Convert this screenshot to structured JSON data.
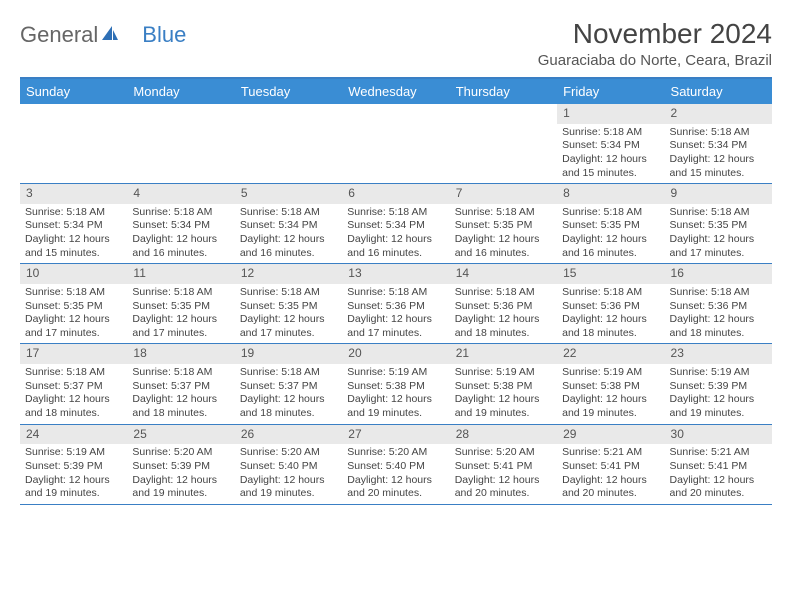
{
  "logo": {
    "part1": "General",
    "part2": "Blue"
  },
  "title": "November 2024",
  "location": "Guaraciaba do Norte, Ceara, Brazil",
  "colors": {
    "header_bg": "#3a8dd4",
    "border": "#3a7fc4",
    "daynum_bg": "#e9e9e9",
    "text": "#444444",
    "logo_gray": "#666666",
    "logo_blue": "#3a7fc4"
  },
  "dayNames": [
    "Sunday",
    "Monday",
    "Tuesday",
    "Wednesday",
    "Thursday",
    "Friday",
    "Saturday"
  ],
  "weeks": [
    [
      {
        "empty": true
      },
      {
        "empty": true
      },
      {
        "empty": true
      },
      {
        "empty": true
      },
      {
        "empty": true
      },
      {
        "num": "1",
        "sunrise": "5:18 AM",
        "sunset": "5:34 PM",
        "daylight": "12 hours and 15 minutes."
      },
      {
        "num": "2",
        "sunrise": "5:18 AM",
        "sunset": "5:34 PM",
        "daylight": "12 hours and 15 minutes."
      }
    ],
    [
      {
        "num": "3",
        "sunrise": "5:18 AM",
        "sunset": "5:34 PM",
        "daylight": "12 hours and 15 minutes."
      },
      {
        "num": "4",
        "sunrise": "5:18 AM",
        "sunset": "5:34 PM",
        "daylight": "12 hours and 16 minutes."
      },
      {
        "num": "5",
        "sunrise": "5:18 AM",
        "sunset": "5:34 PM",
        "daylight": "12 hours and 16 minutes."
      },
      {
        "num": "6",
        "sunrise": "5:18 AM",
        "sunset": "5:34 PM",
        "daylight": "12 hours and 16 minutes."
      },
      {
        "num": "7",
        "sunrise": "5:18 AM",
        "sunset": "5:35 PM",
        "daylight": "12 hours and 16 minutes."
      },
      {
        "num": "8",
        "sunrise": "5:18 AM",
        "sunset": "5:35 PM",
        "daylight": "12 hours and 16 minutes."
      },
      {
        "num": "9",
        "sunrise": "5:18 AM",
        "sunset": "5:35 PM",
        "daylight": "12 hours and 17 minutes."
      }
    ],
    [
      {
        "num": "10",
        "sunrise": "5:18 AM",
        "sunset": "5:35 PM",
        "daylight": "12 hours and 17 minutes."
      },
      {
        "num": "11",
        "sunrise": "5:18 AM",
        "sunset": "5:35 PM",
        "daylight": "12 hours and 17 minutes."
      },
      {
        "num": "12",
        "sunrise": "5:18 AM",
        "sunset": "5:35 PM",
        "daylight": "12 hours and 17 minutes."
      },
      {
        "num": "13",
        "sunrise": "5:18 AM",
        "sunset": "5:36 PM",
        "daylight": "12 hours and 17 minutes."
      },
      {
        "num": "14",
        "sunrise": "5:18 AM",
        "sunset": "5:36 PM",
        "daylight": "12 hours and 18 minutes."
      },
      {
        "num": "15",
        "sunrise": "5:18 AM",
        "sunset": "5:36 PM",
        "daylight": "12 hours and 18 minutes."
      },
      {
        "num": "16",
        "sunrise": "5:18 AM",
        "sunset": "5:36 PM",
        "daylight": "12 hours and 18 minutes."
      }
    ],
    [
      {
        "num": "17",
        "sunrise": "5:18 AM",
        "sunset": "5:37 PM",
        "daylight": "12 hours and 18 minutes."
      },
      {
        "num": "18",
        "sunrise": "5:18 AM",
        "sunset": "5:37 PM",
        "daylight": "12 hours and 18 minutes."
      },
      {
        "num": "19",
        "sunrise": "5:18 AM",
        "sunset": "5:37 PM",
        "daylight": "12 hours and 18 minutes."
      },
      {
        "num": "20",
        "sunrise": "5:19 AM",
        "sunset": "5:38 PM",
        "daylight": "12 hours and 19 minutes."
      },
      {
        "num": "21",
        "sunrise": "5:19 AM",
        "sunset": "5:38 PM",
        "daylight": "12 hours and 19 minutes."
      },
      {
        "num": "22",
        "sunrise": "5:19 AM",
        "sunset": "5:38 PM",
        "daylight": "12 hours and 19 minutes."
      },
      {
        "num": "23",
        "sunrise": "5:19 AM",
        "sunset": "5:39 PM",
        "daylight": "12 hours and 19 minutes."
      }
    ],
    [
      {
        "num": "24",
        "sunrise": "5:19 AM",
        "sunset": "5:39 PM",
        "daylight": "12 hours and 19 minutes."
      },
      {
        "num": "25",
        "sunrise": "5:20 AM",
        "sunset": "5:39 PM",
        "daylight": "12 hours and 19 minutes."
      },
      {
        "num": "26",
        "sunrise": "5:20 AM",
        "sunset": "5:40 PM",
        "daylight": "12 hours and 19 minutes."
      },
      {
        "num": "27",
        "sunrise": "5:20 AM",
        "sunset": "5:40 PM",
        "daylight": "12 hours and 20 minutes."
      },
      {
        "num": "28",
        "sunrise": "5:20 AM",
        "sunset": "5:41 PM",
        "daylight": "12 hours and 20 minutes."
      },
      {
        "num": "29",
        "sunrise": "5:21 AM",
        "sunset": "5:41 PM",
        "daylight": "12 hours and 20 minutes."
      },
      {
        "num": "30",
        "sunrise": "5:21 AM",
        "sunset": "5:41 PM",
        "daylight": "12 hours and 20 minutes."
      }
    ]
  ],
  "labels": {
    "sunrise": "Sunrise:",
    "sunset": "Sunset:",
    "daylight": "Daylight:"
  }
}
